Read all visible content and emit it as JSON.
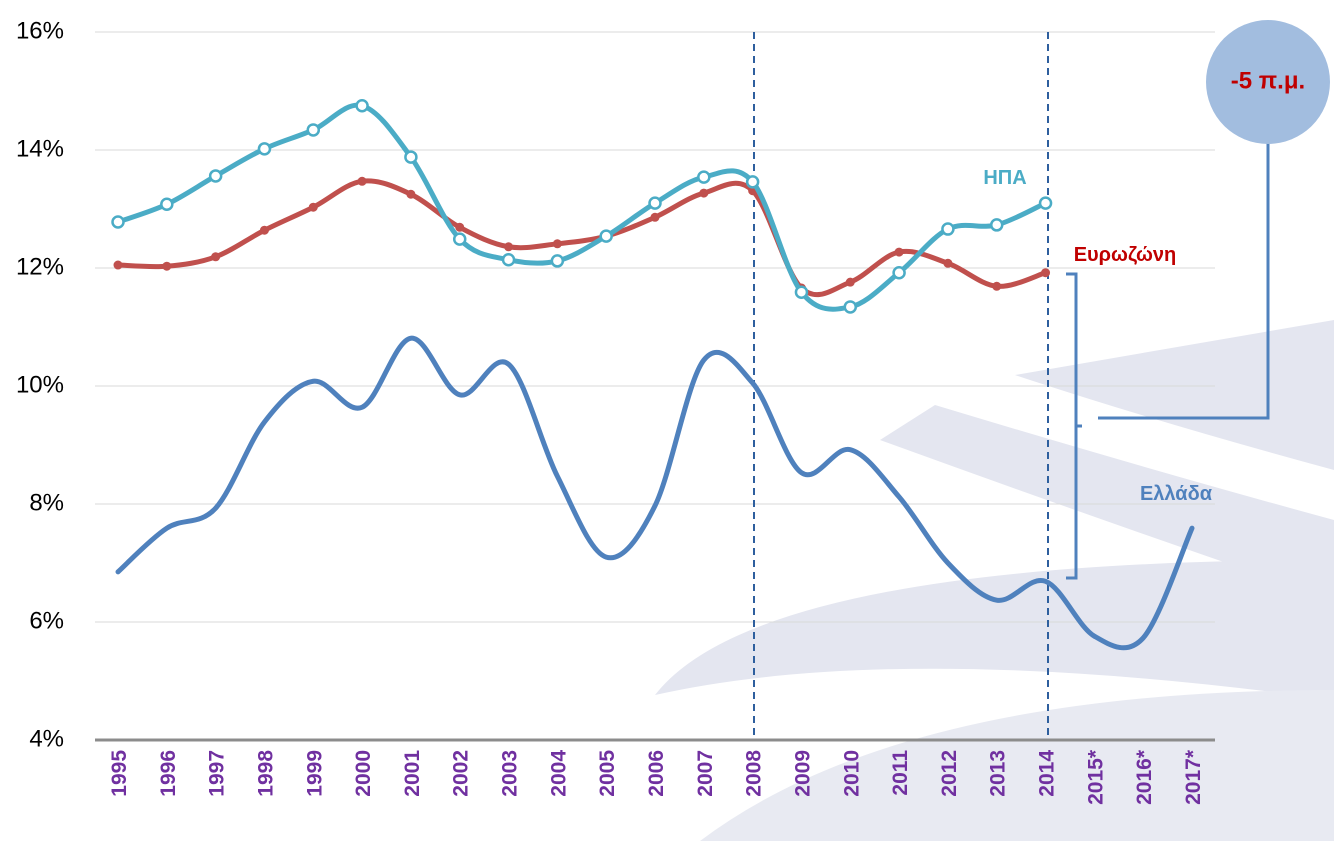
{
  "chart_data": {
    "type": "line",
    "categories": [
      "1995",
      "1996",
      "1997",
      "1998",
      "1999",
      "2000",
      "2001",
      "2002",
      "2003",
      "2004",
      "2005",
      "2006",
      "2007",
      "2008",
      "2009",
      "2010",
      "2011",
      "2012",
      "2013",
      "2014",
      "2015*",
      "2016*",
      "2017*"
    ],
    "series": [
      {
        "name": "ΗΠΑ",
        "color": "#4bacc6",
        "marker": "open-circle",
        "values": [
          12.78,
          13.08,
          13.56,
          14.02,
          14.34,
          14.75,
          13.88,
          12.49,
          12.14,
          12.12,
          12.54,
          13.1,
          13.54,
          13.46,
          11.59,
          11.34,
          11.92,
          12.66,
          12.73,
          13.1,
          null,
          null,
          null
        ]
      },
      {
        "name": "Ευρωζώνη",
        "color": "#c0504d",
        "marker": "dot",
        "values": [
          12.05,
          12.03,
          12.19,
          12.64,
          13.03,
          13.47,
          13.25,
          12.69,
          12.36,
          12.41,
          12.54,
          12.86,
          13.27,
          13.31,
          11.66,
          11.76,
          12.27,
          12.08,
          11.69,
          11.92,
          null,
          null,
          null
        ]
      },
      {
        "name": "Ελλάδα",
        "color": "#4f81bd",
        "marker": "none",
        "values": [
          6.85,
          7.59,
          7.93,
          9.39,
          10.08,
          9.64,
          10.81,
          9.85,
          10.37,
          8.47,
          7.1,
          7.97,
          10.44,
          10.05,
          8.53,
          8.92,
          8.12,
          7.0,
          6.37,
          6.69,
          5.76,
          5.73,
          7.59
        ]
      }
    ],
    "annotation": "-5 π.μ.",
    "ylim": [
      4,
      16
    ],
    "yticks": [
      {
        "value": 4,
        "label": "4%"
      },
      {
        "value": 6,
        "label": "6%"
      },
      {
        "value": 8,
        "label": "8%"
      },
      {
        "value": 10,
        "label": "10%"
      },
      {
        "value": 12,
        "label": "12%"
      },
      {
        "value": 14,
        "label": "14%"
      },
      {
        "value": 16,
        "label": "16%"
      }
    ],
    "grid": true
  }
}
